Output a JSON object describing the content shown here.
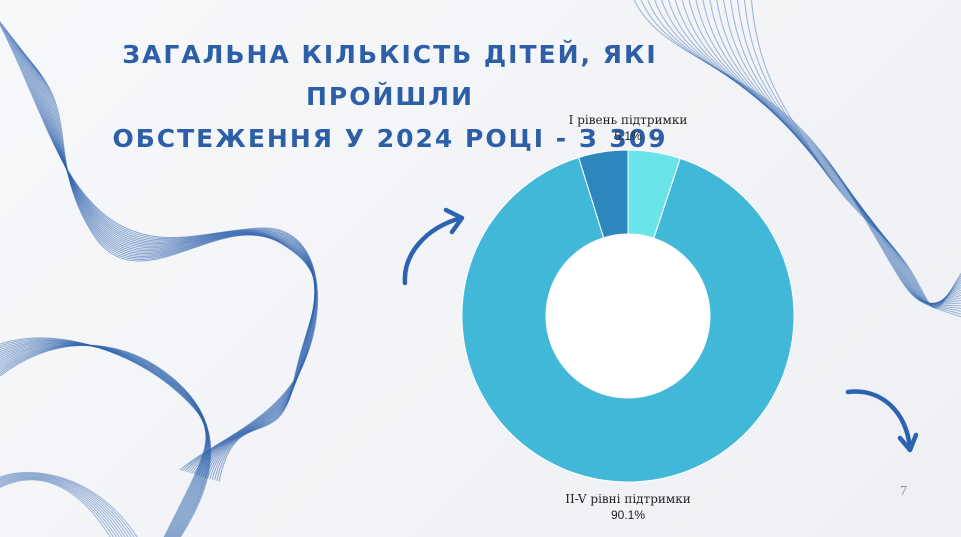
{
  "slide": {
    "title_line1": "ЗАГАЛЬНА КІЛЬКІСТЬ ДІТЕЙ, ЯКІ ПРОЙШЛИ",
    "title_line2": "ОБСТЕЖЕННЯ У 2024 РОЦІ - З 309",
    "page_number": "7"
  },
  "colors": {
    "title": "#2c5fa8",
    "deco_lines": "#2f63ad",
    "arrows": "#2b63b0"
  },
  "chart_data": {
    "type": "pie",
    "variant": "donut",
    "slices": [
      {
        "label": "I рівень підтримки",
        "value": 5.1,
        "display": "5.1%",
        "color": "#6ae4ea"
      },
      {
        "label": "II-V рівні підтримки",
        "value": 90.1,
        "display": "90.1%",
        "color": "#42b8d8"
      },
      {
        "label": "",
        "value": 4.8,
        "display": "",
        "color": "#2d87bd"
      }
    ],
    "start_angle_deg": 0,
    "direction": "clockwise",
    "legend": "none"
  }
}
